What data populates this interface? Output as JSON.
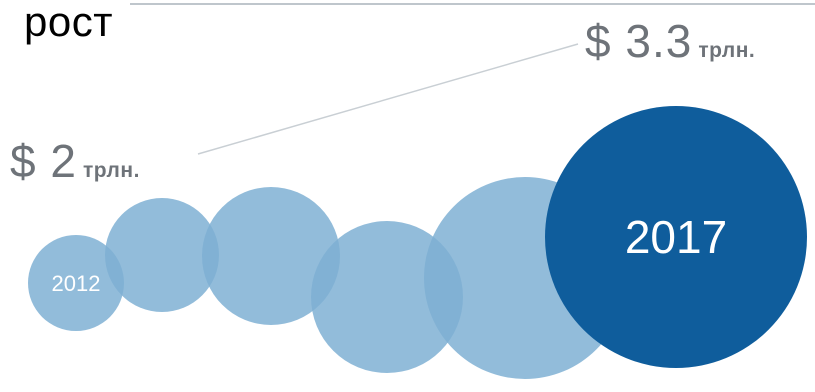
{
  "title": "рост",
  "start_value": {
    "amount": "$ 2",
    "unit": "трлн."
  },
  "end_value": {
    "amount": "$ 3.3",
    "unit": "трлн."
  },
  "start_year": "2012",
  "end_year": "2017",
  "colors": {
    "bubble_light": "#7fb0d4",
    "bubble_dark": "#0f5d9c",
    "connector": "#c9cfd4",
    "text_gray": "#6e7379"
  }
}
